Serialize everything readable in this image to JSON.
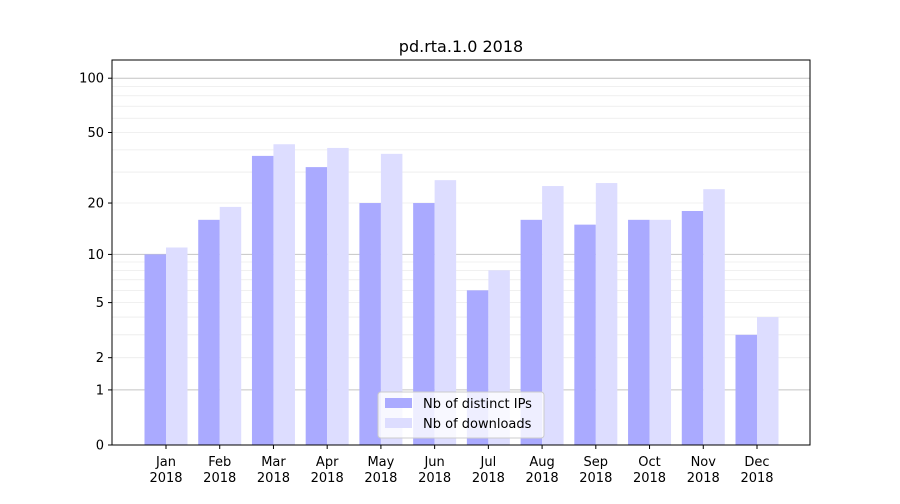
{
  "chart_data": {
    "type": "bar",
    "title": "pd.rta.1.0 2018",
    "xlabel": "",
    "ylabel": "",
    "yscale": "log(1+y)",
    "ylim": [
      0,
      126
    ],
    "yticks": [
      0,
      1,
      2,
      5,
      10,
      20,
      50,
      100
    ],
    "grid": true,
    "legend_placement": "lower-center",
    "categories": [
      "Jan\n2018",
      "Feb\n2018",
      "Mar\n2018",
      "Apr\n2018",
      "May\n2018",
      "Jun\n2018",
      "Jul\n2018",
      "Aug\n2018",
      "Sep\n2018",
      "Oct\n2018",
      "Nov\n2018",
      "Dec\n2018"
    ],
    "series": [
      {
        "name": "Nb of distinct IPs",
        "color": "#aaaaff",
        "values": [
          10,
          16,
          37,
          32,
          20,
          20,
          6,
          16,
          15,
          16,
          18,
          3
        ]
      },
      {
        "name": "Nb of downloads",
        "color": "#ddddff",
        "values": [
          11,
          19,
          43,
          41,
          38,
          27,
          8,
          25,
          26,
          16,
          24,
          4
        ]
      }
    ]
  }
}
